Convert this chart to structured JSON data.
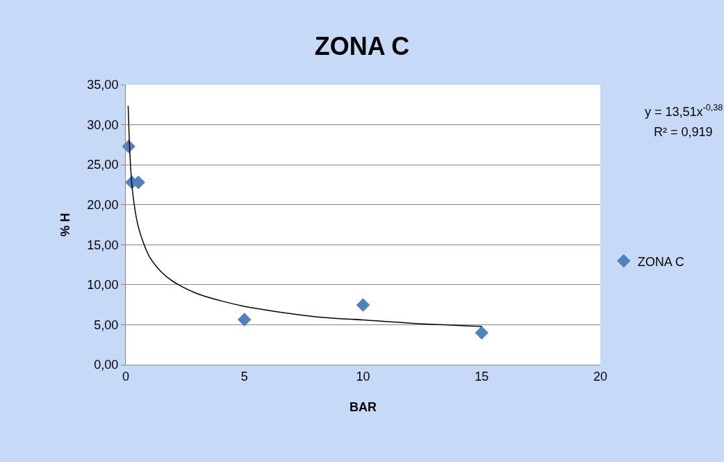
{
  "chart_data": {
    "type": "scatter",
    "title": "ZONA C",
    "xlabel": "BAR",
    "ylabel": "% H",
    "series": [
      {
        "name": "ZONA C",
        "color": "#4f81bd",
        "marker": "diamond",
        "x": [
          0.12,
          0.26,
          0.53,
          5,
          10,
          15
        ],
        "values": [
          27.3,
          22.8,
          22.8,
          5.65,
          7.47,
          4.0
        ]
      },
      {
        "type": "line",
        "color": "#000000",
        "marker": "none",
        "line_style": "solid",
        "x": [
          0.1,
          0.2,
          0.3,
          0.5,
          0.75,
          1,
          1.5,
          2,
          3,
          4,
          5,
          6,
          8,
          10,
          12,
          15
        ],
        "values": [
          32.4,
          24.9,
          21.3,
          17.6,
          15.2,
          13.5,
          11.6,
          10.4,
          8.9,
          8.0,
          7.3,
          6.8,
          6.0,
          5.6,
          5.2,
          4.8
        ]
      }
    ],
    "annotations": [
      "y = 13,51x$^{-0,38}$",
      "R² = 0,919"
    ],
    "xlim": [
      0,
      20
    ],
    "xticks": [
      0,
      5,
      10,
      15,
      20
    ],
    "ylim": [
      0,
      35
    ],
    "yticks": [
      {
        "value": 0,
        "label": "0,00"
      },
      {
        "value": 5,
        "label": "5,00"
      },
      {
        "value": 10,
        "label": "10,00"
      },
      {
        "value": 15,
        "label": "15,00"
      },
      {
        "value": 20,
        "label": "20,00"
      },
      {
        "value": 25,
        "label": "25,00"
      },
      {
        "value": 30,
        "label": "30,00"
      },
      {
        "value": 35,
        "label": "35,00"
      }
    ],
    "grid": "y",
    "legend": "right"
  }
}
